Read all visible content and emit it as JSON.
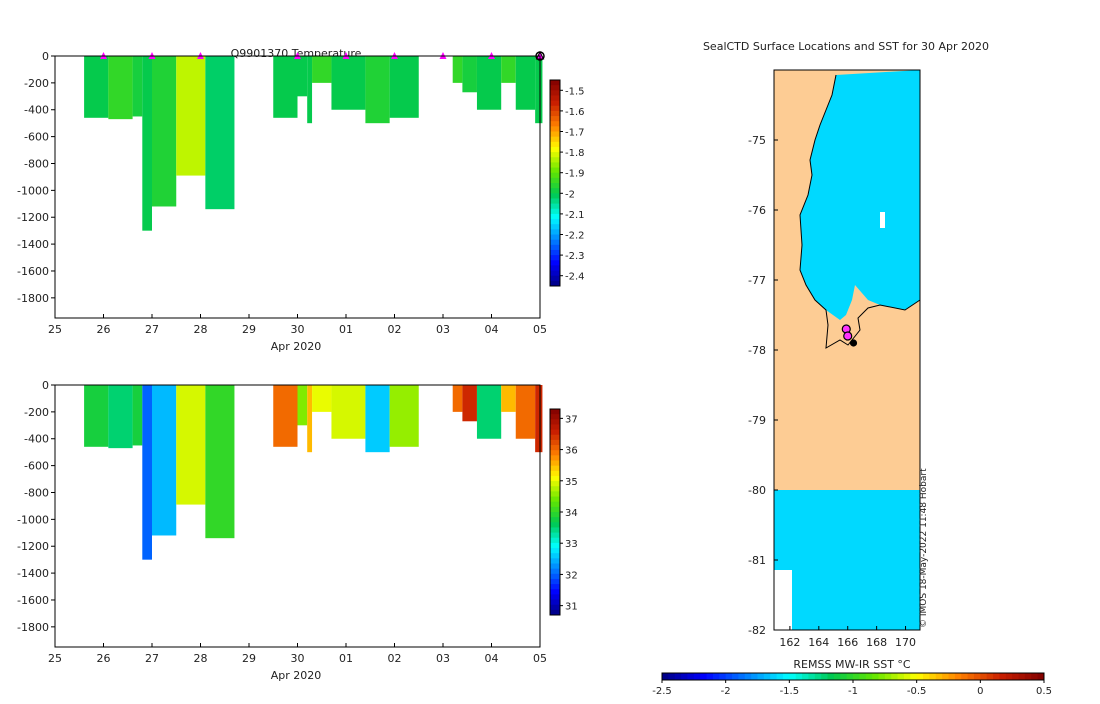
{
  "chart_data": [
    {
      "type": "heatmap",
      "title": "Q9901370  Temperature",
      "xlabel": "Apr 2020",
      "x_ticks": [
        "25",
        "26",
        "27",
        "28",
        "29",
        "30",
        "01",
        "02",
        "03",
        "04",
        "05"
      ],
      "xlim": [
        25,
        35
      ],
      "ylim": [
        -1950,
        0
      ],
      "y_ticks": [
        0,
        -200,
        -400,
        -600,
        -800,
        -1000,
        -1200,
        -1400,
        -1600,
        -1800
      ],
      "colorbar": {
        "ticks": [
          -1.5,
          -1.6,
          -1.7,
          -1.8,
          -1.9,
          -2,
          -2.1,
          -2.2,
          -2.3,
          -2.4
        ],
        "range": [
          -2.45,
          -1.45
        ]
      },
      "surface_markers": [
        26,
        27,
        28,
        30,
        31,
        32,
        33,
        34,
        35
      ],
      "profiles": [
        {
          "x": [
            25.6,
            26.1
          ],
          "depth": 460,
          "value": -2.0
        },
        {
          "x": [
            26.1,
            26.6
          ],
          "depth": 470,
          "value": -1.95
        },
        {
          "x": [
            26.6,
            26.8
          ],
          "depth": 450,
          "value": -1.98
        },
        {
          "x": [
            26.8,
            27.0
          ],
          "depth": 1300,
          "value": -2.0
        },
        {
          "x": [
            27.0,
            27.5
          ],
          "depth": 1120,
          "value": -1.97
        },
        {
          "x": [
            27.5,
            28.1
          ],
          "depth": 890,
          "value": -1.83
        },
        {
          "x": [
            28.1,
            28.7
          ],
          "depth": 1140,
          "value": -2.02
        },
        {
          "x": [
            29.5,
            30.0
          ],
          "depth": 460,
          "value": -2.0
        },
        {
          "x": [
            30.0,
            30.2
          ],
          "depth": 300,
          "value": -2.0
        },
        {
          "x": [
            30.2,
            30.3
          ],
          "depth": 500,
          "value": -2.0
        },
        {
          "x": [
            30.3,
            30.7
          ],
          "depth": 200,
          "value": -1.95
        },
        {
          "x": [
            30.7,
            31.4
          ],
          "depth": 400,
          "value": -2.0
        },
        {
          "x": [
            31.4,
            31.9
          ],
          "depth": 500,
          "value": -1.97
        },
        {
          "x": [
            31.9,
            32.5
          ],
          "depth": 460,
          "value": -2.0
        },
        {
          "x": [
            33.2,
            33.4
          ],
          "depth": 200,
          "value": -1.95
        },
        {
          "x": [
            33.4,
            33.7
          ],
          "depth": 270,
          "value": -1.98
        },
        {
          "x": [
            33.7,
            34.2
          ],
          "depth": 400,
          "value": -2.0
        },
        {
          "x": [
            34.2,
            34.5
          ],
          "depth": 200,
          "value": -1.95
        },
        {
          "x": [
            34.5,
            34.9
          ],
          "depth": 400,
          "value": -2.0
        },
        {
          "x": [
            34.9,
            35.05
          ],
          "depth": 500,
          "value": -2.0
        }
      ]
    },
    {
      "type": "heatmap",
      "title": "",
      "xlabel": "Apr 2020",
      "x_ticks": [
        "25",
        "26",
        "27",
        "28",
        "29",
        "30",
        "01",
        "02",
        "03",
        "04",
        "05"
      ],
      "xlim": [
        25,
        35
      ],
      "ylim": [
        -1950,
        0
      ],
      "y_ticks": [
        0,
        -200,
        -400,
        -600,
        -800,
        -1000,
        -1200,
        -1400,
        -1600,
        -1800
      ],
      "colorbar": {
        "ticks": [
          37,
          36,
          35,
          34,
          33,
          32,
          31
        ],
        "range": [
          30.7,
          37.3
        ]
      },
      "profiles": [
        {
          "x": [
            25.6,
            26.1
          ],
          "depth": 460,
          "value": 33.8
        },
        {
          "x": [
            26.1,
            26.6
          ],
          "depth": 470,
          "value": 33.5
        },
        {
          "x": [
            26.6,
            26.8
          ],
          "depth": 450,
          "value": 33.8
        },
        {
          "x": [
            26.8,
            27.0
          ],
          "depth": 1300,
          "value": 32.0
        },
        {
          "x": [
            27.0,
            27.5
          ],
          "depth": 1120,
          "value": 32.5
        },
        {
          "x": [
            27.5,
            28.1
          ],
          "depth": 890,
          "value": 34.9
        },
        {
          "x": [
            28.1,
            28.7
          ],
          "depth": 1140,
          "value": 34.0
        },
        {
          "x": [
            29.5,
            30.0
          ],
          "depth": 460,
          "value": 36.0
        },
        {
          "x": [
            30.0,
            30.2
          ],
          "depth": 300,
          "value": 34.5
        },
        {
          "x": [
            30.2,
            30.3
          ],
          "depth": 500,
          "value": 35.5
        },
        {
          "x": [
            30.3,
            30.7
          ],
          "depth": 200,
          "value": 35.0
        },
        {
          "x": [
            30.7,
            31.4
          ],
          "depth": 400,
          "value": 34.9
        },
        {
          "x": [
            31.4,
            31.9
          ],
          "depth": 500,
          "value": 32.6
        },
        {
          "x": [
            31.9,
            32.5
          ],
          "depth": 460,
          "value": 34.6
        },
        {
          "x": [
            33.2,
            33.4
          ],
          "depth": 200,
          "value": 36.0
        },
        {
          "x": [
            33.4,
            33.7
          ],
          "depth": 270,
          "value": 36.5
        },
        {
          "x": [
            33.7,
            34.2
          ],
          "depth": 400,
          "value": 33.5
        },
        {
          "x": [
            34.2,
            34.5
          ],
          "depth": 200,
          "value": 35.5
        },
        {
          "x": [
            34.5,
            34.9
          ],
          "depth": 400,
          "value": 36.0
        },
        {
          "x": [
            34.9,
            35.05
          ],
          "depth": 500,
          "value": 36.5
        }
      ]
    },
    {
      "type": "heatmap",
      "title": "SealCTD Surface Locations and SST for 30 Apr 2020",
      "xlabel": "",
      "x_ticks": [
        "162",
        "164",
        "166",
        "168",
        "170"
      ],
      "xlim": [
        160.9,
        171.0
      ],
      "y_ticks": [
        "-75",
        "-76",
        "-77",
        "-78",
        "-79",
        "-80",
        "-81",
        "-82"
      ],
      "ylim": [
        -82,
        -74
      ],
      "colorbar": {
        "label": "REMSS MW-IR SST °C",
        "ticks": [
          "-2.5",
          "-2",
          "-1.5",
          "-1",
          "-0.5",
          "0",
          "0.5"
        ],
        "range": [
          -2.5,
          0.5
        ]
      },
      "land_color": "#fdcc94",
      "ocean_value": -1.6,
      "seal_locations": [
        [
          165.9,
          -77.7
        ],
        [
          166.0,
          -77.8
        ],
        [
          166.4,
          -77.9
        ]
      ],
      "watermark": "© IMOS 18-May-2022 11:48 Hobart"
    }
  ]
}
